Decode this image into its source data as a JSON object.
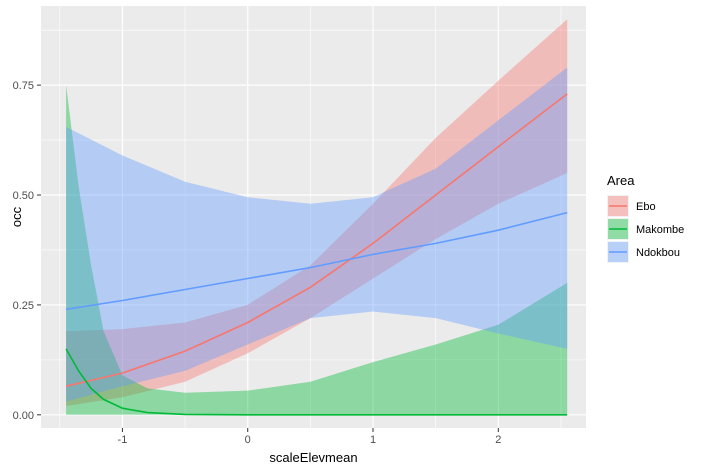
{
  "chart_data": {
    "type": "line",
    "xlabel": "scaleElevmean",
    "ylabel": "occ",
    "xlim": [
      -1.65,
      2.7
    ],
    "ylim": [
      -0.03,
      0.93
    ],
    "x_ticks": [
      -1,
      0,
      1,
      2
    ],
    "x_tick_labels": [
      "-1",
      "0",
      "1",
      "2"
    ],
    "y_ticks": [
      0.0,
      0.25,
      0.5,
      0.75
    ],
    "y_tick_labels": [
      "0.00",
      "0.25",
      "0.50",
      "0.75"
    ],
    "grid": true,
    "legend": {
      "title": "Area",
      "placement": "right"
    },
    "series": [
      {
        "name": "Ebo",
        "color": "#F8766D",
        "x": [
          -1.45,
          -1.0,
          -0.5,
          0.0,
          0.5,
          1.0,
          1.5,
          2.0,
          2.55
        ],
        "fit": [
          0.065,
          0.095,
          0.145,
          0.21,
          0.29,
          0.39,
          0.5,
          0.61,
          0.73
        ],
        "lower": [
          0.02,
          0.04,
          0.075,
          0.14,
          0.22,
          0.31,
          0.4,
          0.48,
          0.55
        ],
        "upper": [
          0.19,
          0.195,
          0.21,
          0.25,
          0.34,
          0.48,
          0.63,
          0.76,
          0.9
        ]
      },
      {
        "name": "Makombe",
        "color": "#00BA38",
        "x": [
          -1.45,
          -1.35,
          -1.25,
          -1.15,
          -1.0,
          -0.8,
          -0.5,
          0.0,
          0.5,
          1.0,
          1.5,
          2.0,
          2.55
        ],
        "fit": [
          0.15,
          0.1,
          0.06,
          0.035,
          0.015,
          0.005,
          0.001,
          0.0,
          0.0,
          0.0,
          0.0,
          0.0,
          0.0
        ],
        "lower": [
          0.0,
          0.0,
          0.0,
          0.0,
          0.0,
          0.0,
          0.0,
          0.0,
          0.0,
          0.0,
          0.0,
          0.0,
          0.0
        ],
        "upper": [
          0.75,
          0.52,
          0.34,
          0.19,
          0.09,
          0.06,
          0.05,
          0.055,
          0.075,
          0.12,
          0.16,
          0.205,
          0.3
        ]
      },
      {
        "name": "Ndokbou",
        "color": "#619CFF",
        "x": [
          -1.45,
          -1.0,
          -0.5,
          0.0,
          0.5,
          1.0,
          1.5,
          2.0,
          2.55
        ],
        "fit": [
          0.24,
          0.26,
          0.285,
          0.31,
          0.335,
          0.365,
          0.39,
          0.42,
          0.46
        ],
        "lower": [
          0.03,
          0.065,
          0.1,
          0.16,
          0.22,
          0.235,
          0.22,
          0.185,
          0.15
        ],
        "upper": [
          0.655,
          0.59,
          0.53,
          0.495,
          0.48,
          0.495,
          0.56,
          0.67,
          0.79
        ]
      }
    ]
  }
}
